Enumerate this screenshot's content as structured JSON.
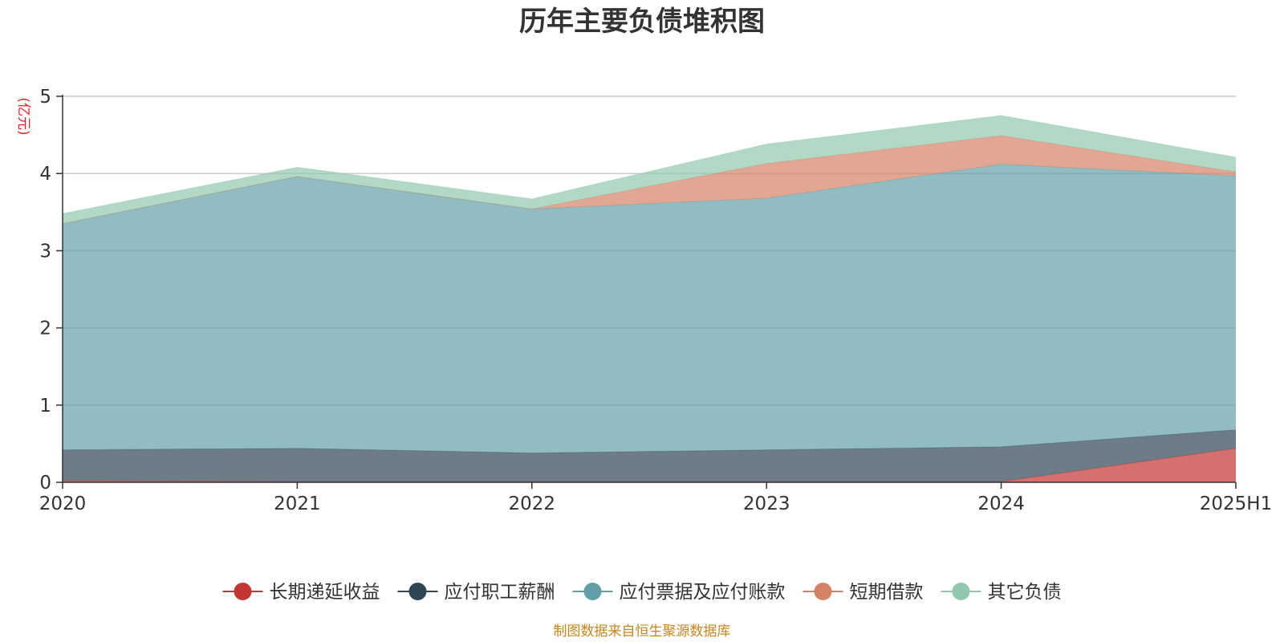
{
  "chart_data": {
    "type": "area",
    "title": "历年主要负债堆积图",
    "unit_label": "(亿元)",
    "categories": [
      "2020",
      "2021",
      "2022",
      "2023",
      "2024",
      "2025H1"
    ],
    "ylim": [
      0,
      5
    ],
    "yticks": [
      "0",
      "1",
      "2",
      "3",
      "4",
      "5"
    ],
    "grid": true,
    "stacked": true,
    "legend_position": "bottom",
    "series": [
      {
        "name": "长期递延收益",
        "color": "#c23531",
        "values": [
          0.02,
          0.01,
          0.01,
          0.01,
          0.01,
          0.44
        ]
      },
      {
        "name": "应付职工薪酬",
        "color": "#2f4554",
        "values": [
          0.4,
          0.43,
          0.37,
          0.41,
          0.45,
          0.24
        ]
      },
      {
        "name": "应付票据及应付账款",
        "color": "#61a0a8",
        "values": [
          2.93,
          3.52,
          3.16,
          3.26,
          3.66,
          3.29
        ]
      },
      {
        "name": "短期借款",
        "color": "#d48265",
        "values": [
          0.0,
          0.0,
          0.0,
          0.45,
          0.37,
          0.05
        ]
      },
      {
        "name": "其它负债",
        "color": "#91c7ae",
        "values": [
          0.13,
          0.12,
          0.13,
          0.25,
          0.26,
          0.19
        ]
      }
    ]
  },
  "footer": "制图数据来自恒生聚源数据库"
}
